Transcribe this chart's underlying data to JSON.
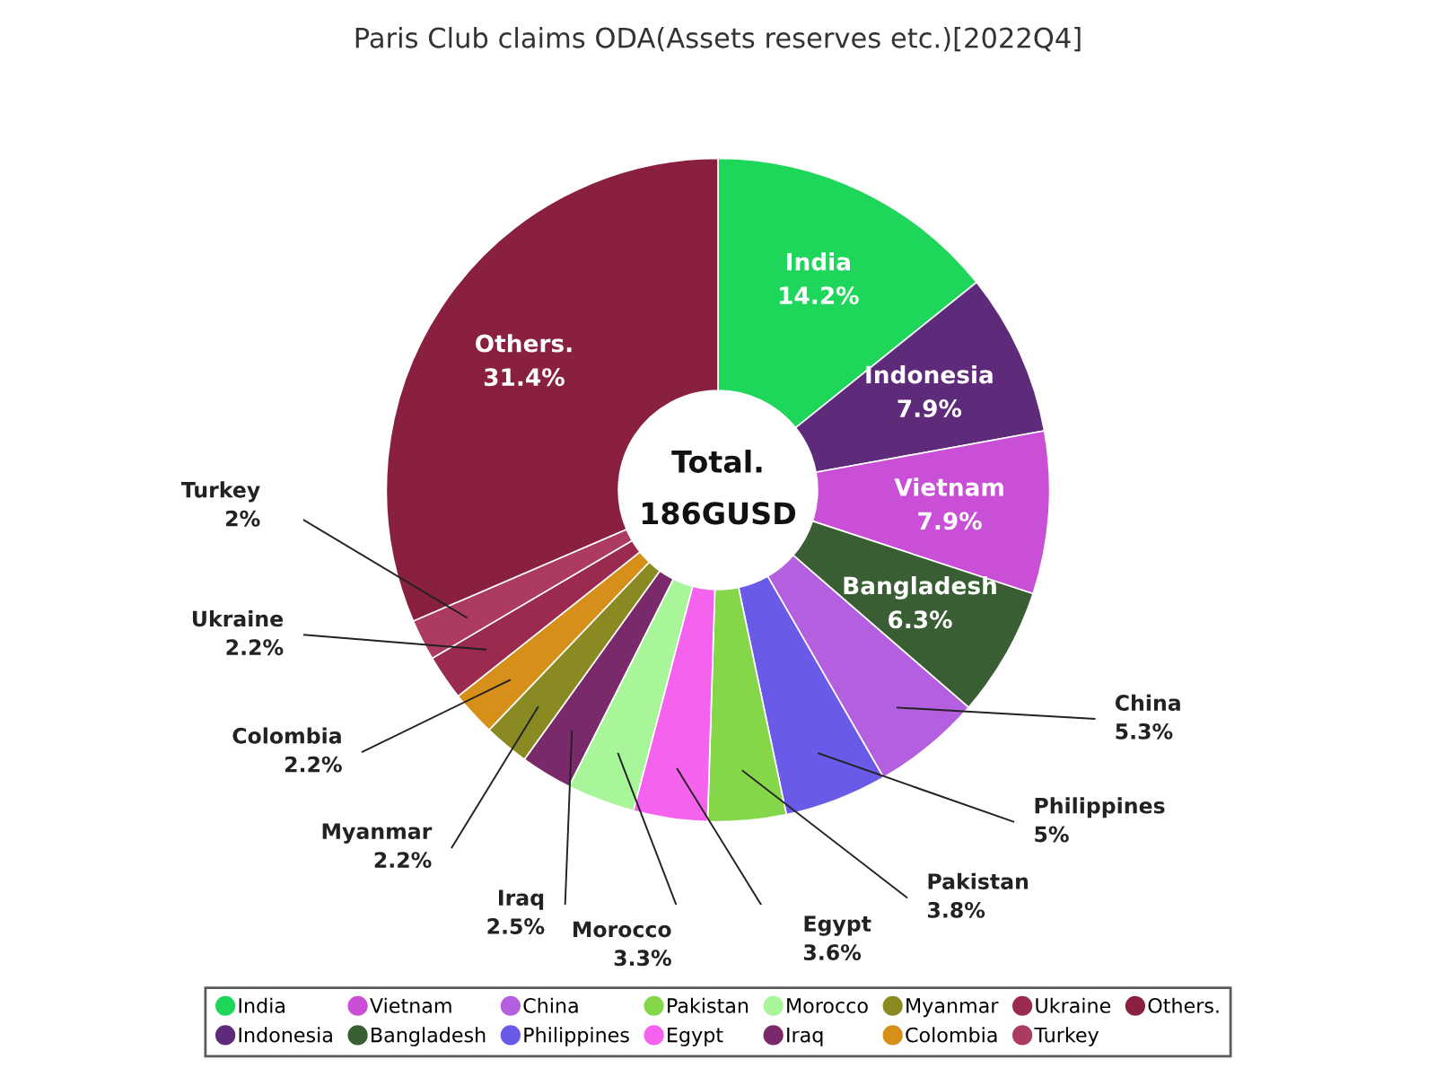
{
  "chart_data": {
    "type": "donut",
    "title": "Paris Club claims ODA(Assets reserves etc.)[2022Q4]",
    "categories": [
      "India",
      "Indonesia",
      "Vietnam",
      "Bangladesh",
      "China",
      "Philippines",
      "Pakistan",
      "Egypt",
      "Morocco",
      "Iraq",
      "Myanmar",
      "Colombia",
      "Ukraine",
      "Turkey",
      "Others."
    ],
    "values": [
      14.2,
      7.9,
      7.9,
      6.3,
      5.3,
      5,
      3.8,
      3.6,
      3.3,
      2.5,
      2.2,
      2.2,
      2.2,
      2,
      31.4
    ],
    "value_labels": [
      "14.2%",
      "7.9%",
      "7.9%",
      "6.3%",
      "5.3%",
      "5%",
      "3.8%",
      "3.6%",
      "3.3%",
      "2.5%",
      "2.2%",
      "2.2%",
      "2.2%",
      "2%",
      "31.4%"
    ],
    "colors": [
      "#1ed65a",
      "#5e2a7a",
      "#c94fd6",
      "#3a5e34",
      "#b45fe0",
      "#6a5ae8",
      "#86d64a",
      "#f462ee",
      "#a8f59a",
      "#7a2a6a",
      "#8a8a22",
      "#d6901a",
      "#9a2a4e",
      "#ad3a62",
      "#8a2040"
    ],
    "annotations": [
      "Total.",
      "186GUSD"
    ],
    "legend": "bottom"
  }
}
